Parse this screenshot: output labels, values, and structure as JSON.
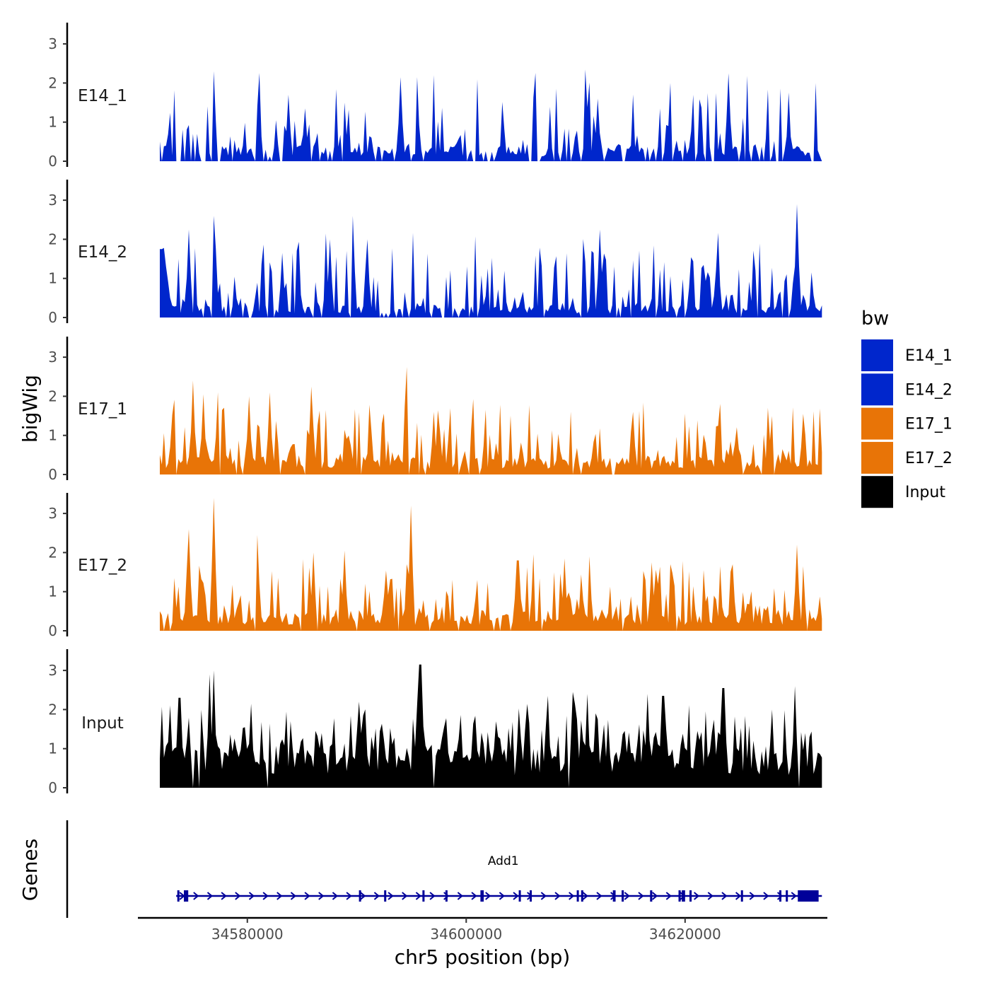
{
  "chart_data": {
    "type": "area",
    "title": "",
    "ylabel": "bigWig",
    "xlabel": "chr5 position (bp)",
    "xlim": [
      34570000,
      34633000
    ],
    "ylim": [
      0,
      3.5
    ],
    "region": [
      34572000,
      34632500
    ],
    "y_ticks": [
      0,
      1,
      2,
      3
    ],
    "x_ticks": [
      34580000,
      34600000,
      34620000
    ],
    "x_tick_labels": [
      "34580000",
      "34600000",
      "34620000"
    ],
    "colors": {
      "E14_1": "#0026CC",
      "E14_2": "#0026CC",
      "E17_1": "#E87407",
      "E17_2": "#E87407",
      "Input": "#000000",
      "gene": "#000099"
    },
    "tracks": [
      {
        "name": "E14_1",
        "seed": 11,
        "baseline": 0.3,
        "spikeRate": 0.45,
        "maxPeak": 2.0,
        "gapRate": 0.25,
        "peaks": [
          [
            34574300,
            1.8
          ],
          [
            34575300,
            1.55
          ],
          [
            34577000,
            2.3
          ],
          [
            34578700,
            1.2
          ],
          [
            34581000,
            1.4
          ],
          [
            34583800,
            1.7
          ],
          [
            34585300,
            1.35
          ],
          [
            34588800,
            1.5
          ],
          [
            34594000,
            2.15
          ],
          [
            34606500,
            1.6
          ],
          [
            34609200,
            1.85
          ],
          [
            34612000,
            1.6
          ],
          [
            34618700,
            2.0
          ],
          [
            34620800,
            1.7
          ],
          [
            34624000,
            2.25
          ],
          [
            34629500,
            1.4
          ]
        ]
      },
      {
        "name": "E14_2",
        "seed": 23,
        "baseline": 0.25,
        "spikeRate": 0.55,
        "maxPeak": 1.9,
        "gapRate": 0.12,
        "peaks": [
          [
            34572100,
            1.75
          ],
          [
            34574700,
            2.25
          ],
          [
            34577000,
            2.6
          ],
          [
            34583200,
            1.65
          ],
          [
            34587500,
            2.0
          ],
          [
            34589700,
            2.6
          ],
          [
            34591000,
            2.0
          ],
          [
            34598000,
            2.3
          ],
          [
            34612200,
            2.25
          ],
          [
            34615000,
            1.6
          ],
          [
            34623000,
            1.8
          ],
          [
            34630200,
            2.9
          ]
        ]
      },
      {
        "name": "E17_1",
        "seed": 37,
        "baseline": 0.35,
        "spikeRate": 0.6,
        "maxPeak": 1.6,
        "gapRate": 0.06,
        "peaks": [
          [
            34575000,
            2.4
          ],
          [
            34576000,
            2.05
          ],
          [
            34577300,
            2.1
          ],
          [
            34580200,
            2.0
          ],
          [
            34582000,
            2.1
          ],
          [
            34585800,
            2.25
          ],
          [
            34594500,
            2.75
          ],
          [
            34597000,
            1.6
          ],
          [
            34615200,
            1.6
          ],
          [
            34630800,
            1.55
          ]
        ]
      },
      {
        "name": "E17_2",
        "seed": 53,
        "baseline": 0.35,
        "spikeRate": 0.65,
        "maxPeak": 1.6,
        "gapRate": 0.05,
        "peaks": [
          [
            34574600,
            2.6
          ],
          [
            34577000,
            3.4
          ],
          [
            34580900,
            2.45
          ],
          [
            34586000,
            2.0
          ],
          [
            34588900,
            2.05
          ],
          [
            34593800,
            2.45
          ],
          [
            34595000,
            3.2
          ],
          [
            34604700,
            1.8
          ],
          [
            34609000,
            1.85
          ],
          [
            34617000,
            1.75
          ],
          [
            34624300,
            1.7
          ],
          [
            34630300,
            2.2
          ]
        ]
      },
      {
        "name": "Input",
        "seed": 71,
        "baseline": 0.8,
        "spikeRate": 0.85,
        "maxPeak": 1.4,
        "gapRate": 0.02,
        "peaks": [
          [
            34573800,
            2.3
          ],
          [
            34576600,
            2.9
          ],
          [
            34577000,
            3.0
          ],
          [
            34580300,
            2.15
          ],
          [
            34590200,
            2.2
          ],
          [
            34595800,
            3.15
          ],
          [
            34607500,
            2.35
          ],
          [
            34609800,
            2.45
          ],
          [
            34611100,
            2.4
          ],
          [
            34616500,
            2.4
          ],
          [
            34618000,
            2.35
          ],
          [
            34623500,
            2.55
          ],
          [
            34630100,
            2.6
          ]
        ]
      }
    ],
    "legend": {
      "title": "bw",
      "entries": [
        "E14_1",
        "E14_2",
        "E17_1",
        "E17_2",
        "Input"
      ]
    },
    "genes": {
      "ylabel": "Genes",
      "name": "Add1",
      "strand": "+",
      "start": 34573500,
      "end": 34632500,
      "exons": [
        [
          34573600,
          34573750
        ],
        [
          34574200,
          34574600
        ],
        [
          34590200,
          34590300
        ],
        [
          34592500,
          34592600
        ],
        [
          34596000,
          34596100
        ],
        [
          34598100,
          34598250
        ],
        [
          34601300,
          34601600
        ],
        [
          34604800,
          34604900
        ],
        [
          34605800,
          34605950
        ],
        [
          34610100,
          34610250
        ],
        [
          34610500,
          34610600
        ],
        [
          34613400,
          34613650
        ],
        [
          34614200,
          34614400
        ],
        [
          34616800,
          34617000
        ],
        [
          34619400,
          34619600
        ],
        [
          34619700,
          34620000
        ],
        [
          34620400,
          34620600
        ],
        [
          34625100,
          34625200
        ],
        [
          34628600,
          34628800
        ],
        [
          34629200,
          34629350
        ],
        [
          34630300,
          34632200
        ]
      ],
      "arrow_count": 45
    }
  }
}
